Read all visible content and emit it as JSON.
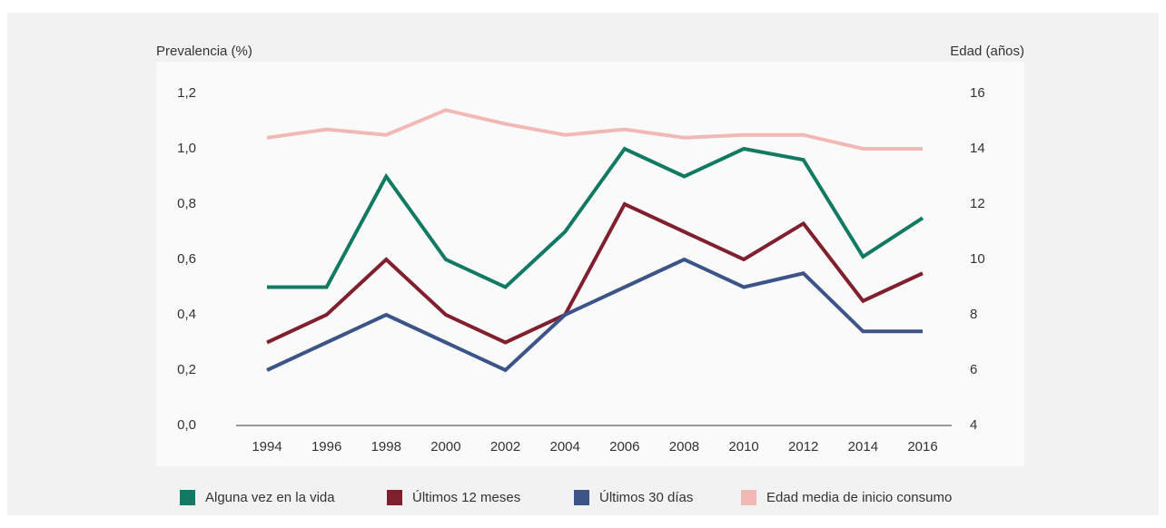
{
  "chart_data": {
    "type": "line",
    "y_label": "Prevalencia (%)",
    "y2_label": "Edad (años)",
    "categories": [
      "1994",
      "1996",
      "1998",
      "2000",
      "2002",
      "2004",
      "2006",
      "2008",
      "2010",
      "2012",
      "2014",
      "2016"
    ],
    "series": [
      {
        "name": "Alguna vez en la vida",
        "color": "#127a63",
        "values": [
          0.5,
          0.5,
          0.9,
          0.6,
          0.5,
          0.7,
          1.0,
          0.9,
          1.0,
          0.96,
          0.61,
          0.75
        ]
      },
      {
        "name": "Últimos 12 meses",
        "color": "#80202e",
        "values": [
          0.3,
          0.4,
          0.6,
          0.4,
          0.3,
          0.4,
          0.8,
          0.7,
          0.6,
          0.73,
          0.45,
          0.55
        ]
      },
      {
        "name": "Últimos 30 días",
        "color": "#3c5488",
        "values": [
          0.2,
          0.3,
          0.4,
          0.3,
          0.2,
          0.4,
          0.5,
          0.6,
          0.5,
          0.55,
          0.34,
          0.34
        ]
      },
      {
        "name": "Edad media de inicio consumo",
        "color": "#f2b8b6",
        "axis": "y2",
        "values": [
          14.4,
          14.7,
          14.5,
          15.4,
          14.9,
          14.5,
          14.7,
          14.4,
          14.5,
          14.5,
          14.0,
          14.0
        ]
      }
    ],
    "ylim": [
      0,
      1.2
    ],
    "yticks": [
      {
        "value": 0,
        "label": "0,0"
      },
      {
        "value": 0.2,
        "label": "0,2"
      },
      {
        "value": 0.4,
        "label": "0,4"
      },
      {
        "value": 0.6,
        "label": "0,6"
      },
      {
        "value": 0.8,
        "label": "0,8"
      },
      {
        "value": 1.0,
        "label": "1,0"
      },
      {
        "value": 1.2,
        "label": "1,2"
      }
    ],
    "y2lim": [
      4,
      16
    ],
    "y2ticks": [
      4,
      6,
      8,
      10,
      12,
      14,
      16
    ],
    "grid": false
  }
}
